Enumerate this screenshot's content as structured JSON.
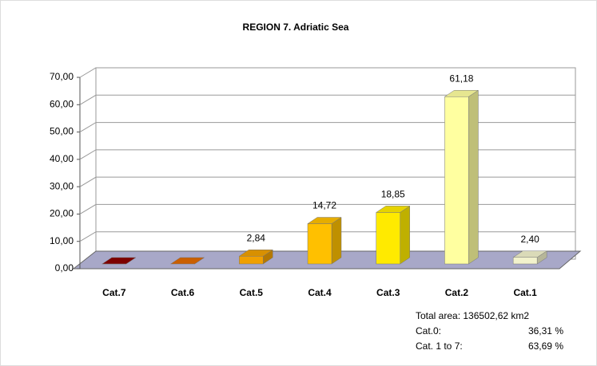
{
  "chart_data": {
    "type": "bar3d",
    "title": "REGION 7. Adriatic Sea",
    "categories": [
      "Cat.7",
      "Cat.6",
      "Cat.5",
      "Cat.4",
      "Cat.3",
      "Cat.2",
      "Cat.1"
    ],
    "values": [
      0.01,
      0,
      2.84,
      14.72,
      18.85,
      61.18,
      2.4
    ],
    "value_labels": [
      null,
      null,
      "2,84",
      "14,72",
      "18,85",
      "61,18",
      "2,40"
    ],
    "colors": [
      "#8b0000",
      "#e06a00",
      "#f0a000",
      "#ffc000",
      "#ffea00",
      "#ffffa0",
      "#f2f2cc"
    ],
    "ylim": [
      0,
      70
    ],
    "yticks": [
      {
        "value": 0,
        "label": "0,00"
      },
      {
        "value": 10,
        "label": "10,00"
      },
      {
        "value": 20,
        "label": "20,00"
      },
      {
        "value": 30,
        "label": "30,00"
      },
      {
        "value": 40,
        "label": "40,00"
      },
      {
        "value": 50,
        "label": "50,00"
      },
      {
        "value": 60,
        "label": "60,00"
      },
      {
        "value": 70,
        "label": "70,00"
      }
    ],
    "grid": true,
    "notes": {
      "total": "Total area: 136502,62 km2",
      "cat0_label": "Cat.0:",
      "cat0_value": "36,31 %",
      "cat17_label": "Cat. 1 to 7:",
      "cat17_value": "63,69 %"
    }
  }
}
